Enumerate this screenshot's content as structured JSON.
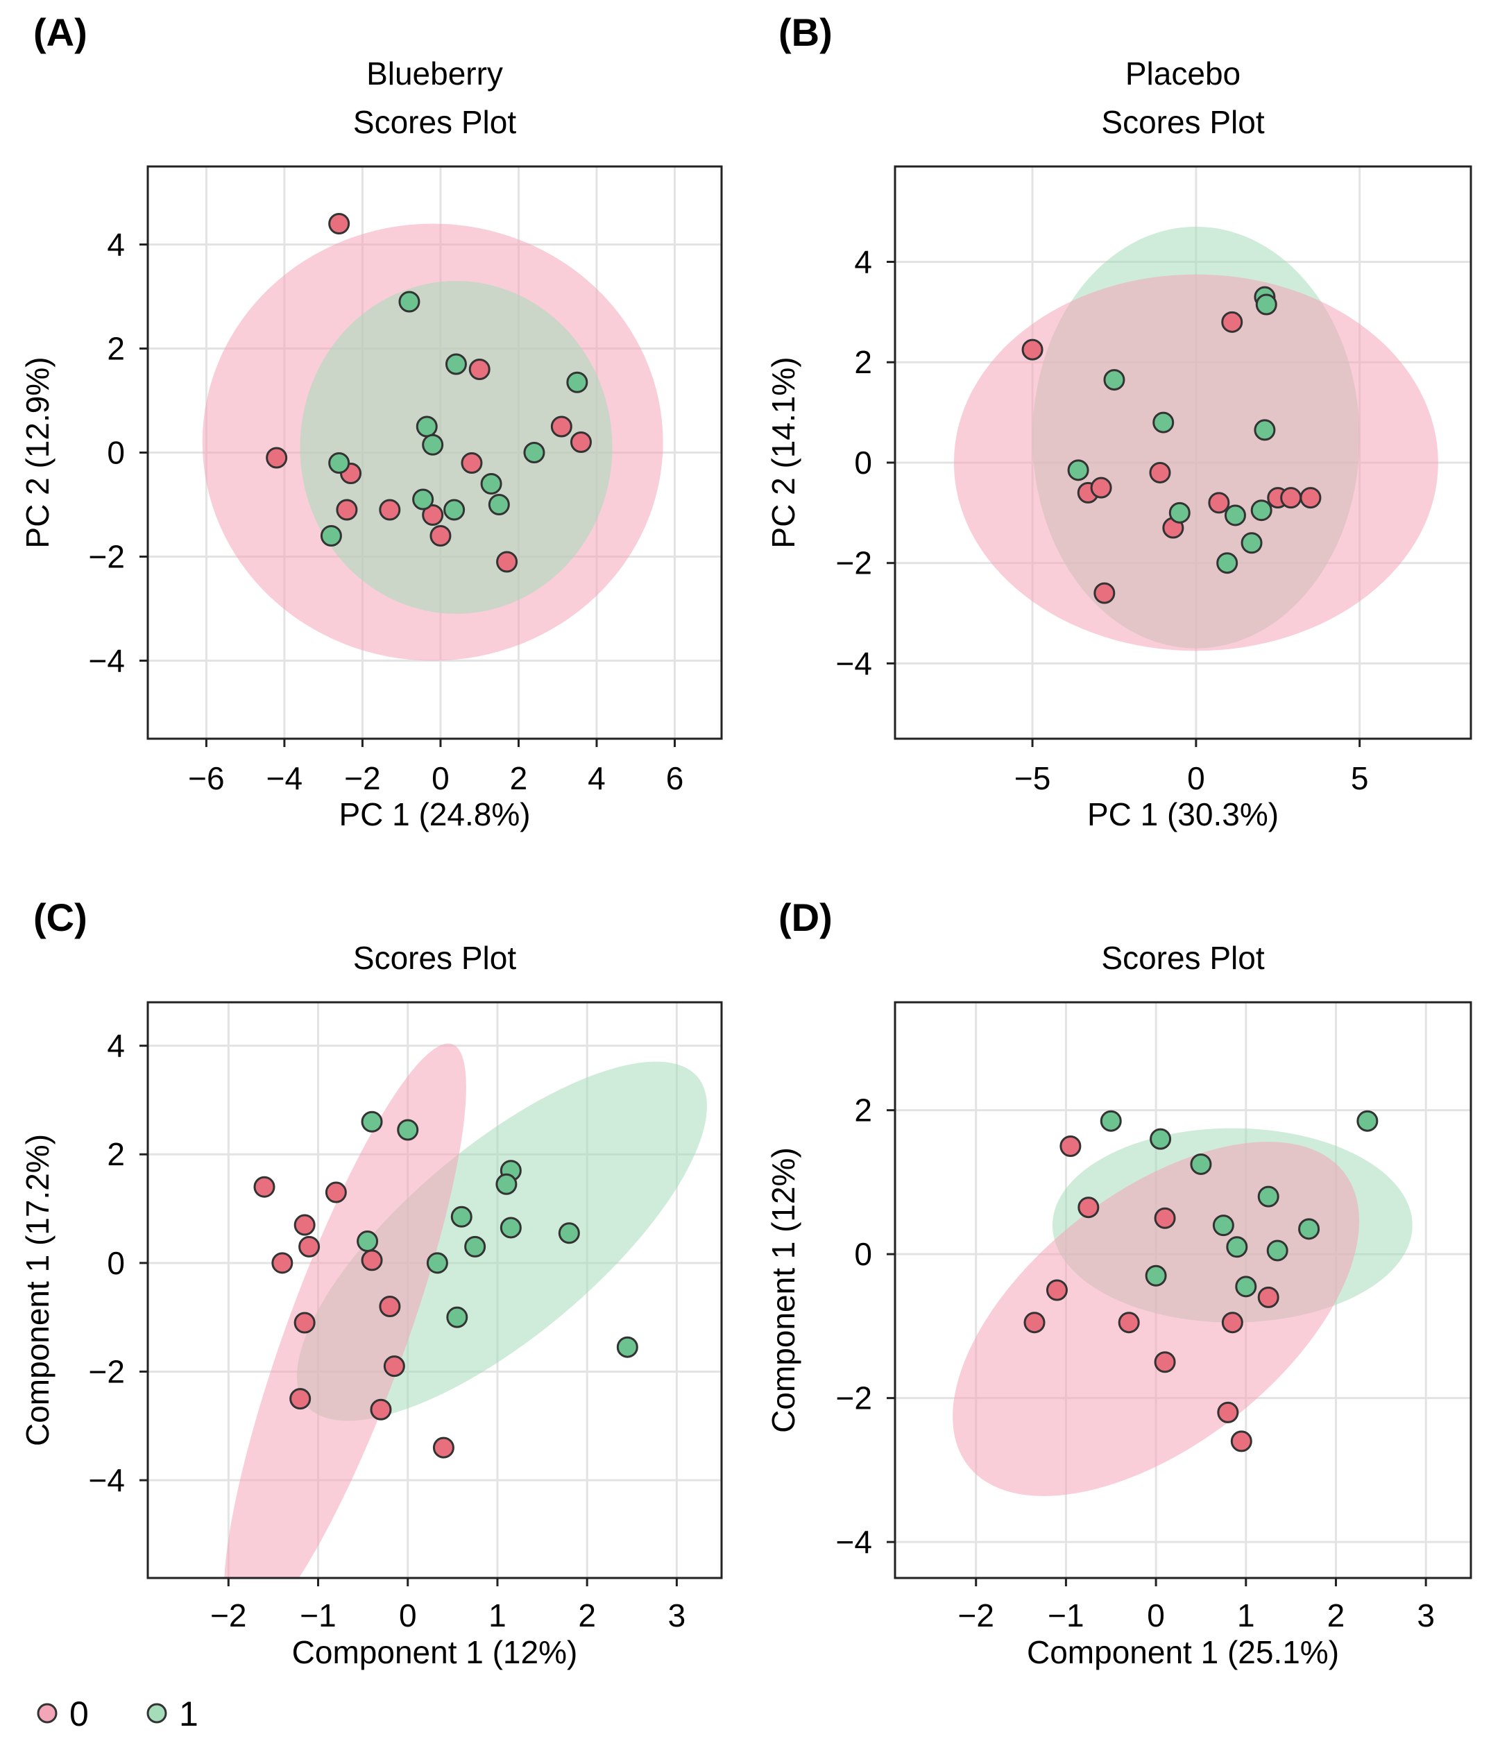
{
  "colors": {
    "group0_fill": "#e8707e",
    "group0_ellipse": "#f4a6b9",
    "group1_fill": "#6cc38f",
    "group1_ellipse": "#a5dcb9",
    "marker_stroke": "#333333",
    "grid": "#e3e3e3",
    "frame": "#222222"
  },
  "legend": [
    {
      "label": "0",
      "group": 0
    },
    {
      "label": "1",
      "group": 1
    }
  ],
  "chart_data": [
    {
      "panel": "(A)",
      "type": "scatter",
      "title": [
        "Blueberry",
        "Scores Plot"
      ],
      "xlabel": "PC 1 (24.8%)",
      "ylabel": "PC 2 (12.9%)",
      "xlim": [
        -7.5,
        7.2
      ],
      "ylim": [
        -5.5,
        5.5
      ],
      "xticks": [
        -6,
        -4,
        -2,
        0,
        2,
        4,
        6
      ],
      "yticks": [
        -4,
        -2,
        0,
        2,
        4
      ],
      "xtick_labels": [
        "−6",
        "−4",
        "−2",
        "0",
        "2",
        "4",
        "6"
      ],
      "ytick_labels": [
        "−4",
        "−2",
        "0",
        "2",
        "4"
      ],
      "ellipses": [
        {
          "group": 0,
          "cx": -0.2,
          "cy": 0.2,
          "rx": 5.9,
          "ry": 4.2,
          "angle": 0
        },
        {
          "group": 1,
          "cx": 0.4,
          "cy": 0.1,
          "rx": 4.0,
          "ry": 3.2,
          "angle": 0
        }
      ],
      "series": [
        {
          "name": "0",
          "group": 0,
          "x": [
            -2.6,
            -4.2,
            -2.3,
            -2.4,
            -1.3,
            -0.2,
            0.0,
            1.0,
            0.8,
            3.1,
            3.6,
            1.7
          ],
          "y": [
            4.4,
            -0.1,
            -0.4,
            -1.1,
            -1.1,
            -1.2,
            -1.6,
            1.6,
            -0.2,
            0.5,
            0.2,
            -2.1
          ]
        },
        {
          "name": "1",
          "group": 1,
          "x": [
            -0.8,
            0.4,
            -0.35,
            -0.2,
            -2.6,
            -2.8,
            -0.45,
            0.35,
            1.3,
            1.5,
            2.4,
            3.5
          ],
          "y": [
            2.9,
            1.7,
            0.5,
            0.15,
            -0.2,
            -1.6,
            -0.9,
            -1.1,
            -0.6,
            -1.0,
            0.0,
            1.35
          ]
        }
      ]
    },
    {
      "panel": "(B)",
      "type": "scatter",
      "title": [
        "Placebo",
        "Scores Plot"
      ],
      "xlabel": "PC 1 (30.3%)",
      "ylabel": "PC 2 (14.1%)",
      "xlim": [
        -9.2,
        8.4
      ],
      "ylim": [
        -5.5,
        5.9
      ],
      "xticks": [
        -5,
        0,
        5
      ],
      "yticks": [
        -4,
        -2,
        0,
        2,
        4
      ],
      "xtick_labels": [
        "−5",
        "0",
        "5"
      ],
      "ytick_labels": [
        "−4",
        "−2",
        "0",
        "2",
        "4"
      ],
      "ellipses": [
        {
          "group": 1,
          "cx": 0.0,
          "cy": 0.5,
          "rx": 5.0,
          "ry": 4.2,
          "angle": 0
        },
        {
          "group": 0,
          "cx": 0.0,
          "cy": 0.0,
          "rx": 7.4,
          "ry": 3.75,
          "angle": 0
        }
      ],
      "series": [
        {
          "name": "0",
          "group": 0,
          "x": [
            -5.0,
            1.1,
            -3.3,
            -2.9,
            -2.8,
            -1.1,
            -0.7,
            0.7,
            2.5,
            2.9,
            3.5
          ],
          "y": [
            2.25,
            2.8,
            -0.6,
            -0.5,
            -2.6,
            -0.2,
            -1.3,
            -0.8,
            -0.7,
            -0.7,
            -0.7
          ]
        },
        {
          "name": "1",
          "group": 1,
          "x": [
            2.1,
            2.15,
            -2.5,
            -1.0,
            2.1,
            -3.6,
            -0.5,
            1.2,
            2.0,
            1.7,
            0.95
          ],
          "y": [
            3.3,
            3.15,
            1.65,
            0.8,
            0.65,
            -0.15,
            -1.0,
            -1.05,
            -0.95,
            -1.6,
            -2.0
          ]
        }
      ]
    },
    {
      "panel": "(C)",
      "type": "scatter",
      "title": [
        "Scores Plot"
      ],
      "xlabel": "Component 1 (12%)",
      "ylabel": "Component 1 (17.2%)",
      "xlim": [
        -2.9,
        3.5
      ],
      "ylim": [
        -5.8,
        4.8
      ],
      "xticks": [
        -2,
        -1,
        0,
        1,
        2,
        3
      ],
      "yticks": [
        -4,
        -2,
        0,
        2,
        4
      ],
      "xtick_labels": [
        "−2",
        "−1",
        "0",
        "1",
        "2",
        "3"
      ],
      "ytick_labels": [
        "−4",
        "−2",
        "0",
        "2",
        "4"
      ],
      "ellipses": [
        {
          "group": 1,
          "cx": 1.05,
          "cy": 0.4,
          "rx": 2.85,
          "ry": 1.75,
          "angle": -40
        },
        {
          "group": 0,
          "cx": -0.7,
          "cy": -1.4,
          "rx": 3.5,
          "ry": 1.1,
          "angle": -70
        }
      ],
      "series": [
        {
          "name": "0",
          "group": 0,
          "x": [
            -1.6,
            -0.8,
            -1.15,
            -1.1,
            -1.4,
            -0.4,
            -0.2,
            -1.15,
            -0.15,
            -1.2,
            -0.3,
            0.4
          ],
          "y": [
            1.4,
            1.3,
            0.7,
            0.3,
            0.0,
            0.05,
            -0.8,
            -1.1,
            -1.9,
            -2.5,
            -2.7,
            -3.4
          ]
        },
        {
          "name": "1",
          "group": 1,
          "x": [
            -0.4,
            0.0,
            1.15,
            1.1,
            0.6,
            1.15,
            1.8,
            0.75,
            -0.45,
            0.33,
            0.55,
            2.45
          ],
          "y": [
            2.6,
            2.45,
            1.7,
            1.45,
            0.85,
            0.65,
            0.55,
            0.3,
            0.4,
            0.0,
            -1.0,
            -1.55
          ]
        }
      ]
    },
    {
      "panel": "(D)",
      "type": "scatter",
      "title": [
        "Scores Plot"
      ],
      "xlabel": "Component 1 (25.1%)",
      "ylabel": "Component 1 (12%)",
      "xlim": [
        -2.9,
        3.5
      ],
      "ylim": [
        -4.5,
        3.5
      ],
      "xticks": [
        -2,
        -1,
        0,
        1,
        2,
        3
      ],
      "yticks": [
        -4,
        -2,
        0,
        2
      ],
      "xtick_labels": [
        "−2",
        "−1",
        "0",
        "1",
        "2",
        "3"
      ],
      "ytick_labels": [
        "−4",
        "−2",
        "0",
        "2"
      ],
      "ellipses": [
        {
          "group": 1,
          "cx": 0.85,
          "cy": 0.4,
          "rx": 2.0,
          "ry": 1.35,
          "angle": 0
        },
        {
          "group": 0,
          "cx": 0.0,
          "cy": -0.9,
          "rx": 2.65,
          "ry": 1.75,
          "angle": -38
        }
      ],
      "series": [
        {
          "name": "0",
          "group": 0,
          "x": [
            -0.95,
            -0.75,
            0.1,
            -1.1,
            -1.35,
            -0.3,
            0.1,
            0.85,
            1.25,
            0.8,
            0.95
          ],
          "y": [
            1.5,
            0.65,
            0.5,
            -0.5,
            -0.95,
            -0.95,
            -1.5,
            -0.95,
            -0.6,
            -2.2,
            -2.6
          ]
        },
        {
          "name": "1",
          "group": 1,
          "x": [
            -0.5,
            0.05,
            0.5,
            2.35,
            1.25,
            0.75,
            0.9,
            1.35,
            1.7,
            0.0,
            1.0
          ],
          "y": [
            1.85,
            1.6,
            1.25,
            1.85,
            0.8,
            0.4,
            0.1,
            0.05,
            0.35,
            -0.3,
            -0.45
          ]
        }
      ]
    }
  ]
}
